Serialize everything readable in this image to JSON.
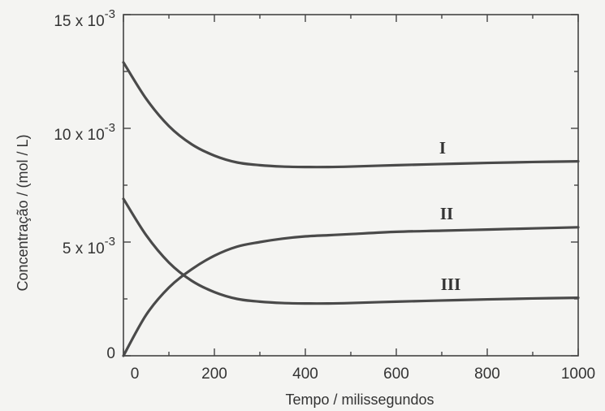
{
  "chart_data": {
    "type": "line",
    "xlabel": "Tempo / milissegundos",
    "ylabel": "Concentração / (mol / L)",
    "xlim": [
      0,
      1000
    ],
    "ylim": [
      0,
      0.015
    ],
    "x_ticks": [
      {
        "value": 0,
        "label": "0"
      },
      {
        "value": 200,
        "label": "200"
      },
      {
        "value": 400,
        "label": "400"
      },
      {
        "value": 600,
        "label": "600"
      },
      {
        "value": 800,
        "label": "800"
      },
      {
        "value": 1000,
        "label": "1000"
      }
    ],
    "y_ticks": [
      {
        "value": 0,
        "base": "0",
        "exp": ""
      },
      {
        "value": 0.005,
        "base": "5 x 10",
        "exp": "-3"
      },
      {
        "value": 0.01,
        "base": "10 x 10",
        "exp": "-3"
      },
      {
        "value": 0.015,
        "base": "15 x 10",
        "exp": "-3"
      }
    ],
    "grid": false,
    "series": [
      {
        "name": "I",
        "x": [
          0,
          50,
          100,
          150,
          200,
          250,
          300,
          350,
          400,
          450,
          500,
          600,
          700,
          800,
          900,
          1000
        ],
        "y": [
          0.0129,
          0.0113,
          0.0101,
          0.0093,
          0.0088,
          0.0085,
          0.00838,
          0.00832,
          0.0083,
          0.0083,
          0.00832,
          0.00838,
          0.00843,
          0.00848,
          0.00852,
          0.00855
        ]
      },
      {
        "name": "II",
        "x": [
          0,
          50,
          100,
          150,
          200,
          250,
          300,
          350,
          400,
          450,
          500,
          600,
          700,
          800,
          900,
          1000
        ],
        "y": [
          0.0,
          0.0018,
          0.003,
          0.0038,
          0.0044,
          0.0048,
          0.005,
          0.00515,
          0.00525,
          0.0053,
          0.00535,
          0.00545,
          0.0055,
          0.00555,
          0.0056,
          0.00565
        ]
      },
      {
        "name": "III",
        "x": [
          0,
          50,
          100,
          150,
          200,
          250,
          300,
          350,
          400,
          450,
          500,
          600,
          700,
          800,
          900,
          1000
        ],
        "y": [
          0.0069,
          0.0053,
          0.0041,
          0.0033,
          0.0028,
          0.0025,
          0.00238,
          0.00232,
          0.0023,
          0.0023,
          0.00232,
          0.00238,
          0.00243,
          0.00248,
          0.00252,
          0.00255
        ]
      }
    ]
  }
}
